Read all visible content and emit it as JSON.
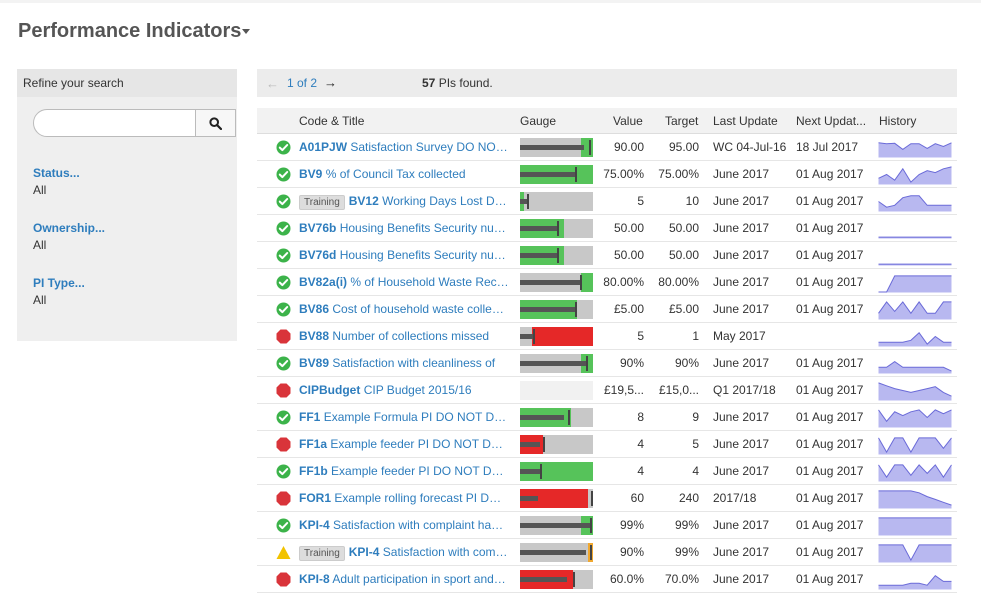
{
  "page": {
    "title": "Performance Indicators"
  },
  "sidebar": {
    "header": "Refine your search",
    "search": {
      "value": "",
      "placeholder": ""
    },
    "filters": [
      {
        "label": "Status...",
        "value": "All"
      },
      {
        "label": "Ownership...",
        "value": "All"
      },
      {
        "label": "PI Type...",
        "value": "All"
      }
    ]
  },
  "pager": {
    "page_text": "1 of 2",
    "found_count": "57",
    "found_text": "PIs found."
  },
  "table": {
    "headers": [
      "Code & Title",
      "Gauge",
      "Value",
      "Target",
      "Last Update",
      "Next Updat...",
      "History"
    ],
    "rows": [
      {
        "status": "ok",
        "badge": "",
        "code": "A01PJW",
        "title": "Satisfaction Survey DO NOT USE",
        "value": "90.00",
        "target": "95.00",
        "last": "WC 04-Jul-16",
        "next": "18 Jul 2017",
        "gauge": {
          "color": "green",
          "fill": 1.0,
          "actual": 0.87,
          "target": 0.95
        },
        "history": [
          0.75,
          0.7,
          0.72,
          0.4,
          0.7,
          0.7,
          0.45,
          0.7,
          0.55,
          0.75
        ]
      },
      {
        "status": "ok",
        "badge": "",
        "code": "BV9",
        "title": "% of Council Tax collected",
        "value": "75.00%",
        "target": "75.00%",
        "last": "June 2017",
        "next": "01 Aug 2017",
        "gauge": {
          "color": "green",
          "fill": 1.0,
          "actual": 0.75,
          "target": 0.75
        },
        "history": [
          0.3,
          0.5,
          0.2,
          0.8,
          0.1,
          0.5,
          0.7,
          0.6,
          0.8,
          0.9
        ]
      },
      {
        "status": "ok",
        "badge": "Training",
        "code": "BV12",
        "title": "Working Days Lost Due to Sickness",
        "value": "5",
        "target": "10",
        "last": "June 2017",
        "next": "01 Aug 2017",
        "gauge": {
          "color": "green",
          "fill": 0.05,
          "actual": 0.1,
          "target": 0.1
        },
        "history": [
          0.5,
          0.2,
          0.3,
          0.7,
          0.8,
          0.8,
          0.3,
          0.3,
          0.3,
          0.3
        ]
      },
      {
        "status": "ok",
        "badge": "",
        "code": "BV76b",
        "title": "Housing Benefits Security number of",
        "value": "50.00",
        "target": "50.00",
        "last": "June 2017",
        "next": "01 Aug 2017",
        "gauge": {
          "color": "green",
          "fill": 0.6,
          "actual": 0.5,
          "target": 0.5
        },
        "history": [
          0.05,
          0.05,
          0.05,
          0.05,
          0.05,
          0.05,
          0.05,
          0.05,
          0.05,
          0.05
        ]
      },
      {
        "status": "ok",
        "badge": "",
        "code": "BV76d",
        "title": "Housing Benefits Security number of",
        "value": "50.00",
        "target": "50.00",
        "last": "June 2017",
        "next": "01 Aug 2017",
        "gauge": {
          "color": "green",
          "fill": 0.6,
          "actual": 0.5,
          "target": 0.5
        },
        "history": [
          0.05,
          0.05,
          0.05,
          0.05,
          0.05,
          0.05,
          0.05,
          0.05,
          0.05,
          0.05
        ]
      },
      {
        "status": "ok",
        "badge": "",
        "code": "BV82a(i)",
        "title": "% of Household Waste Recycled",
        "value": "80.00%",
        "target": "80.00%",
        "last": "June 2017",
        "next": "01 Aug 2017",
        "gauge": {
          "color": "green",
          "fill": 1.0,
          "actual": 0.82,
          "target": 0.82
        },
        "history": [
          0.0,
          0.0,
          0.85,
          0.85,
          0.85,
          0.85,
          0.85,
          0.85,
          0.85,
          0.85
        ]
      },
      {
        "status": "ok",
        "badge": "",
        "code": "BV86",
        "title": "Cost of household waste collection per",
        "value": "£5.00",
        "target": "£5.00",
        "last": "June 2017",
        "next": "01 Aug 2017",
        "gauge": {
          "color": "green",
          "fill": 0.78,
          "actual": 0.75,
          "target": 0.75
        },
        "history": [
          0.3,
          0.9,
          0.4,
          0.9,
          0.3,
          0.9,
          0.3,
          0.3,
          0.9,
          0.9
        ]
      },
      {
        "status": "bad",
        "badge": "",
        "code": "BV88",
        "title": "Number of collections missed",
        "value": "5",
        "target": "1",
        "last": "May 2017",
        "next": "",
        "gauge": {
          "color": "red",
          "fill": 1.0,
          "actual": 0.18,
          "target": 0.18
        },
        "history": [
          0.2,
          0.2,
          0.2,
          0.2,
          0.3,
          0.7,
          0.1,
          0.5,
          0.2,
          0.2
        ]
      },
      {
        "status": "ok",
        "badge": "",
        "code": "BV89",
        "title": "Satisfaction with cleanliness of",
        "value": "90%",
        "target": "90%",
        "last": "June 2017",
        "next": "01 Aug 2017",
        "gauge": {
          "color": "green",
          "fill": 1.0,
          "actual": 0.9,
          "target": 0.9
        },
        "history": [
          0.3,
          0.3,
          0.6,
          0.3,
          0.3,
          0.3,
          0.3,
          0.3,
          0.3,
          0.1
        ]
      },
      {
        "status": "bad",
        "badge": "",
        "code": "CIPBudget",
        "title": "CIP Budget 2015/16",
        "value": "£19,5...",
        "target": "£15,0...",
        "last": "Q1 2017/18",
        "next": "01 Aug 2017",
        "gauge": {
          "color": "none",
          "fill": 0.0,
          "actual": 0.0,
          "target": 0.0
        },
        "history": [
          0.9,
          0.75,
          0.6,
          0.5,
          0.4,
          0.5,
          0.6,
          0.7,
          0.4,
          0.2
        ]
      },
      {
        "status": "ok",
        "badge": "",
        "code": "FF1",
        "title": "Example Formula PI DO NOT DELETE",
        "value": "8",
        "target": "9",
        "last": "June 2017",
        "next": "01 Aug 2017",
        "gauge": {
          "color": "green",
          "fill": 0.7,
          "actual": 0.6,
          "target": 0.66
        },
        "history": [
          0.9,
          0.3,
          0.8,
          0.6,
          0.8,
          0.9,
          0.5,
          0.9,
          0.7,
          0.9
        ]
      },
      {
        "status": "bad",
        "badge": "",
        "code": "FF1a",
        "title": "Example feeder PI DO NOT DELETE",
        "value": "4",
        "target": "5",
        "last": "June 2017",
        "next": "01 Aug 2017",
        "gauge": {
          "color": "red",
          "fill": 0.32,
          "actual": 0.28,
          "target": 0.32
        },
        "history": [
          0.85,
          0.1,
          0.85,
          0.85,
          0.1,
          0.85,
          0.85,
          0.85,
          0.3,
          0.85
        ]
      },
      {
        "status": "ok",
        "badge": "",
        "code": "FF1b",
        "title": "Example feeder PI DO NOT DELETE",
        "value": "4",
        "target": "4",
        "last": "June 2017",
        "next": "01 Aug 2017",
        "gauge": {
          "color": "green",
          "fill": 1.0,
          "actual": 0.28,
          "target": 0.28
        },
        "history": [
          0.85,
          0.2,
          0.85,
          0.85,
          0.3,
          0.85,
          0.4,
          0.85,
          0.2,
          0.85
        ]
      },
      {
        "status": "bad",
        "badge": "",
        "code": "FOR1",
        "title": "Example rolling forecast PI DO NOT DELETE",
        "value": "60",
        "target": "240",
        "last": "2017/18",
        "next": "01 Aug 2017",
        "gauge": {
          "color": "red",
          "fill": 0.93,
          "actual": 0.25,
          "target": 0.97
        },
        "history": [
          0.9,
          0.9,
          0.9,
          0.9,
          0.9,
          0.8,
          0.6,
          0.45,
          0.3,
          0.15
        ]
      },
      {
        "status": "ok",
        "badge": "",
        "code": "KPI-4",
        "title": "Satisfaction with complaint handling",
        "value": "99%",
        "target": "99%",
        "last": "June 2017",
        "next": "01 Aug 2017",
        "gauge": {
          "color": "green",
          "fill": 1.0,
          "actual": 0.96,
          "target": 0.96
        },
        "history": [
          0.9,
          0.9,
          0.9,
          0.9,
          0.9,
          0.9,
          0.9,
          0.9,
          0.9,
          0.9
        ]
      },
      {
        "status": "warn",
        "badge": "Training",
        "code": "KPI-4",
        "title": "Satisfaction with complaint handling",
        "value": "90%",
        "target": "99%",
        "last": "June 2017",
        "next": "01 Aug 2017",
        "gauge": {
          "color": "amber",
          "fill": 1.0,
          "actual": 0.9,
          "target": 0.96
        },
        "history": [
          0.9,
          0.9,
          0.9,
          0.9,
          0.1,
          0.9,
          0.9,
          0.9,
          0.9,
          0.9
        ]
      },
      {
        "status": "bad",
        "badge": "",
        "code": "KPI-8",
        "title": "Adult participation in sport and active",
        "value": "60.0%",
        "target": "70.0%",
        "last": "June 2017",
        "next": "01 Aug 2017",
        "gauge": {
          "color": "red",
          "fill": 0.72,
          "actual": 0.65,
          "target": 0.72
        },
        "history": [
          0.2,
          0.2,
          0.2,
          0.2,
          0.3,
          0.3,
          0.2,
          0.7,
          0.4,
          0.4
        ]
      }
    ]
  },
  "colors": {
    "link": "#2e7dbd",
    "ok": "#3cb34a",
    "bad": "#d9343a",
    "warn": "#f2c300",
    "gauge_green": "#56c35a",
    "gauge_red": "#e52828",
    "gauge_amber": "#f0a830",
    "history_fill": "#b8b8f0",
    "history_line": "#6a6ad8"
  }
}
